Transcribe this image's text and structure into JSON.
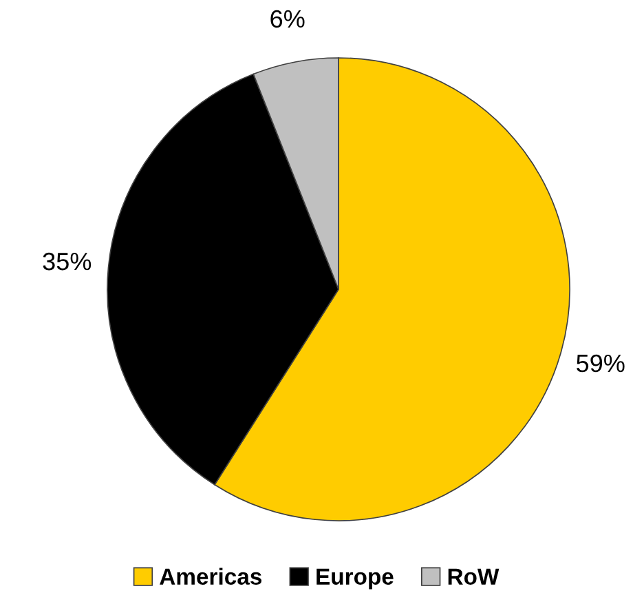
{
  "chart_data": {
    "type": "pie",
    "categories": [
      "Americas",
      "Europe",
      "RoW"
    ],
    "values": [
      59,
      35,
      6
    ],
    "colors": [
      "#ffcc00",
      "#000000",
      "#c0c0c0"
    ],
    "value_labels": [
      "59%",
      "35%",
      "6%"
    ],
    "legend": "bottom"
  }
}
